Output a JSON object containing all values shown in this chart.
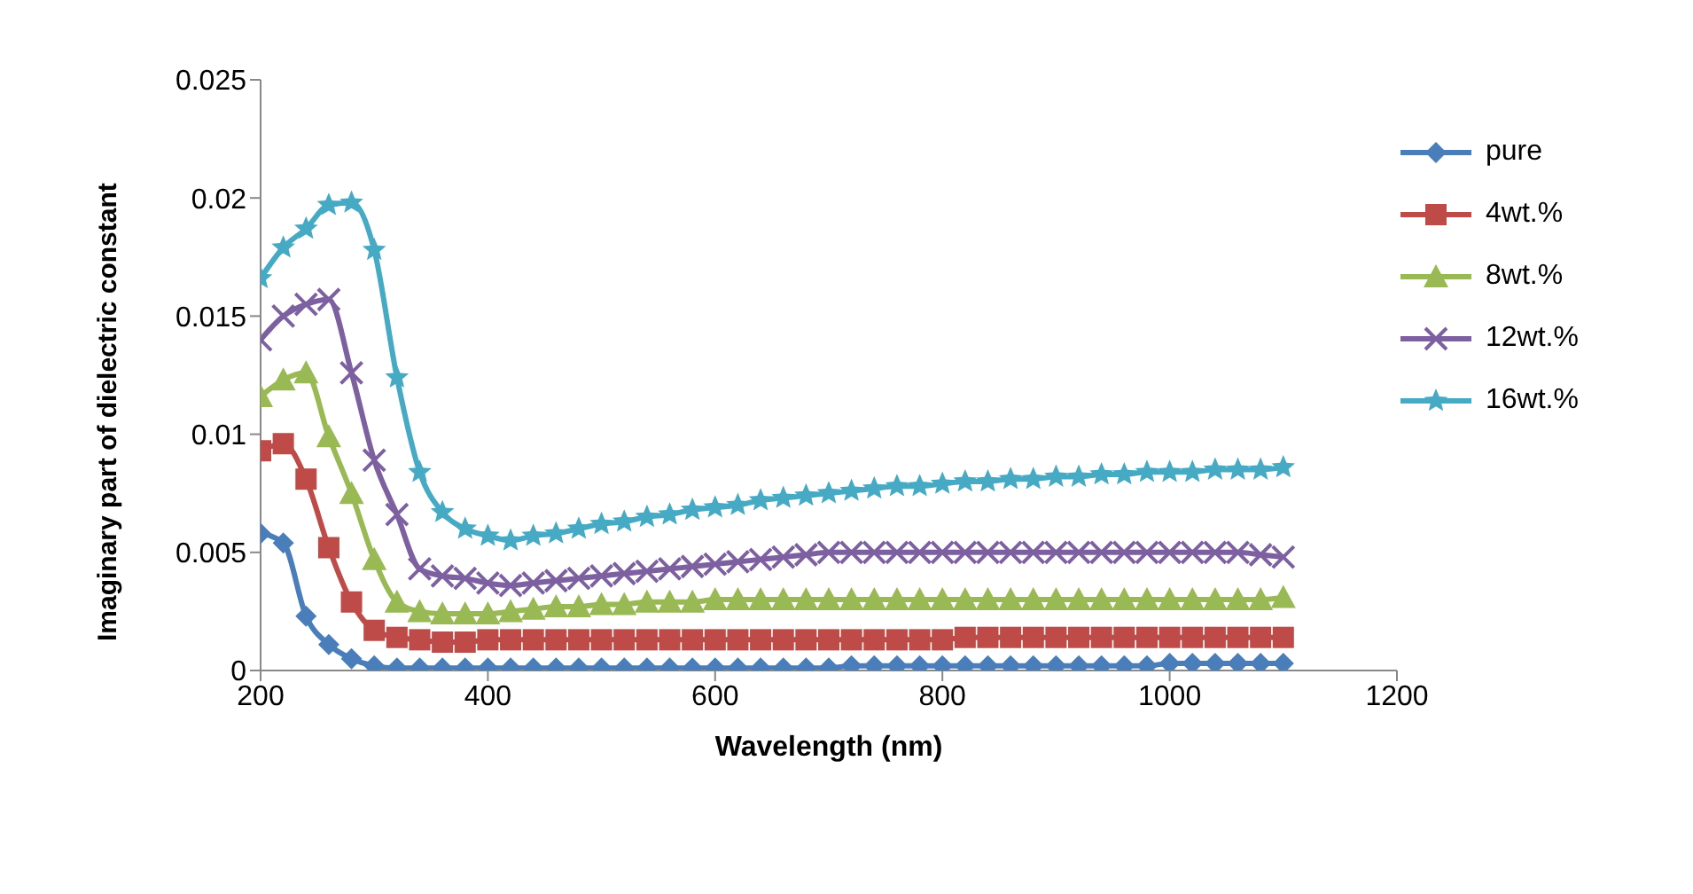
{
  "chart_data": {
    "type": "line",
    "xlabel": "Wavelength (nm)",
    "ylabel": "Imaginary part of dielectric constant",
    "x": [
      200,
      220,
      240,
      260,
      280,
      300,
      320,
      340,
      360,
      380,
      400,
      420,
      440,
      460,
      480,
      500,
      520,
      540,
      560,
      580,
      600,
      620,
      640,
      660,
      680,
      700,
      720,
      740,
      760,
      780,
      800,
      820,
      840,
      860,
      880,
      900,
      920,
      940,
      960,
      980,
      1000,
      1020,
      1040,
      1060,
      1080,
      1100
    ],
    "xlim": [
      200,
      1200
    ],
    "xticks": [
      200,
      400,
      600,
      800,
      1000,
      1200
    ],
    "ylim": [
      0,
      0.025
    ],
    "yticks": [
      0,
      0.005,
      0.01,
      0.015,
      0.02,
      0.025
    ],
    "grid": false,
    "legend": "right",
    "series": [
      {
        "name": "pure",
        "color": "#4a7ebb",
        "marker": "diamond",
        "values": [
          0.0058,
          0.0054,
          0.0023,
          0.0011,
          0.0005,
          0.0002,
          0.0001,
          0.0001,
          0.0001,
          0.0001,
          0.0001,
          0.0001,
          0.0001,
          0.0001,
          0.0001,
          0.0001,
          0.0001,
          0.0001,
          0.0001,
          0.0001,
          0.0001,
          0.0001,
          0.0001,
          0.0001,
          0.0001,
          0.0001,
          0.0002,
          0.0002,
          0.0002,
          0.0002,
          0.0002,
          0.0002,
          0.0002,
          0.0002,
          0.0002,
          0.0002,
          0.0002,
          0.0002,
          0.0002,
          0.0002,
          0.0003,
          0.0003,
          0.0003,
          0.0003,
          0.0003,
          0.0003
        ]
      },
      {
        "name": "4wt.%",
        "color": "#be4b48",
        "marker": "square",
        "values": [
          0.0093,
          0.0096,
          0.0081,
          0.0052,
          0.0029,
          0.0017,
          0.0014,
          0.0013,
          0.0012,
          0.0012,
          0.0013,
          0.0013,
          0.0013,
          0.0013,
          0.0013,
          0.0013,
          0.0013,
          0.0013,
          0.0013,
          0.0013,
          0.0013,
          0.0013,
          0.0013,
          0.0013,
          0.0013,
          0.0013,
          0.0013,
          0.0013,
          0.0013,
          0.0013,
          0.0013,
          0.0014,
          0.0014,
          0.0014,
          0.0014,
          0.0014,
          0.0014,
          0.0014,
          0.0014,
          0.0014,
          0.0014,
          0.0014,
          0.0014,
          0.0014,
          0.0014,
          0.0014
        ]
      },
      {
        "name": "8wt.%",
        "color": "#98b954",
        "marker": "triangle",
        "values": [
          0.0116,
          0.0123,
          0.0126,
          0.0099,
          0.0075,
          0.0047,
          0.0029,
          0.0025,
          0.0024,
          0.0024,
          0.0024,
          0.0025,
          0.0026,
          0.0027,
          0.0027,
          0.0028,
          0.0028,
          0.0029,
          0.0029,
          0.0029,
          0.003,
          0.003,
          0.003,
          0.003,
          0.003,
          0.003,
          0.003,
          0.003,
          0.003,
          0.003,
          0.003,
          0.003,
          0.003,
          0.003,
          0.003,
          0.003,
          0.003,
          0.003,
          0.003,
          0.003,
          0.003,
          0.003,
          0.003,
          0.003,
          0.003,
          0.0031
        ]
      },
      {
        "name": "12wt.%",
        "color": "#7d60a0",
        "marker": "cross",
        "values": [
          0.014,
          0.015,
          0.0155,
          0.0157,
          0.0126,
          0.0089,
          0.0066,
          0.0043,
          0.004,
          0.0039,
          0.0037,
          0.0036,
          0.0037,
          0.0038,
          0.0039,
          0.004,
          0.0041,
          0.0042,
          0.0043,
          0.0044,
          0.0045,
          0.0046,
          0.0047,
          0.0048,
          0.0049,
          0.005,
          0.005,
          0.005,
          0.005,
          0.005,
          0.005,
          0.005,
          0.005,
          0.005,
          0.005,
          0.005,
          0.005,
          0.005,
          0.005,
          0.005,
          0.005,
          0.005,
          0.005,
          0.005,
          0.0049,
          0.0048
        ]
      },
      {
        "name": "16wt.%",
        "color": "#46aac5",
        "marker": "star",
        "values": [
          0.0166,
          0.0179,
          0.0187,
          0.0197,
          0.0198,
          0.0178,
          0.0124,
          0.0084,
          0.0067,
          0.006,
          0.0057,
          0.0055,
          0.0057,
          0.0058,
          0.006,
          0.0062,
          0.0063,
          0.0065,
          0.0066,
          0.0068,
          0.0069,
          0.007,
          0.0072,
          0.0073,
          0.0074,
          0.0075,
          0.0076,
          0.0077,
          0.0078,
          0.0078,
          0.0079,
          0.008,
          0.008,
          0.0081,
          0.0081,
          0.0082,
          0.0082,
          0.0083,
          0.0083,
          0.0084,
          0.0084,
          0.0084,
          0.0085,
          0.0085,
          0.0085,
          0.0086
        ]
      }
    ]
  }
}
